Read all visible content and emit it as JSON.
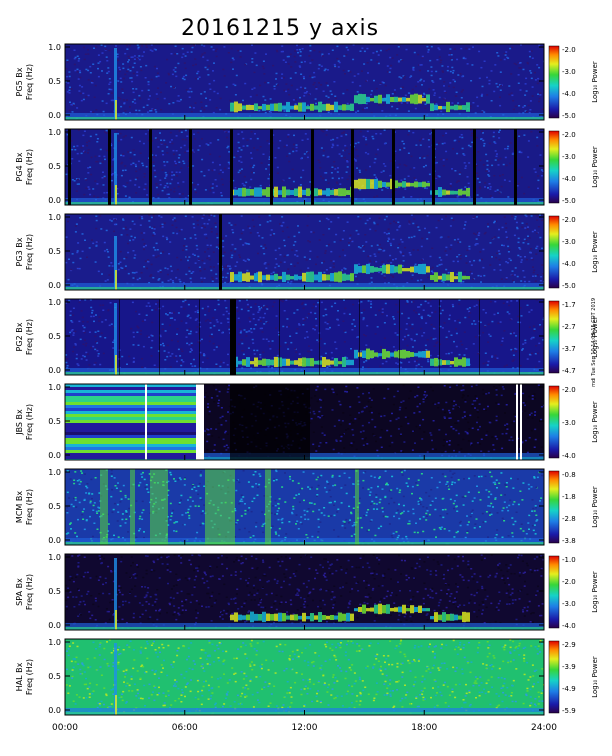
{
  "title": "20161215 y axis",
  "stamp": "mdi Tue Sep 10 14:09:15 CDT 2019",
  "chart_data": {
    "type": "heatmap",
    "x_ticks": [
      "00:00",
      "06:00",
      "12:00",
      "18:00",
      "24:00"
    ],
    "y_ticks": [
      "0.0",
      "0.5",
      "1.0"
    ],
    "colorbar_label": "Log₁₀ Power",
    "panels": [
      {
        "station": "PG5 Bx",
        "ylabel": "Freq (Hz)",
        "cbar_ticks": [
          "-2.0",
          "-3.0",
          "-4.0",
          "-5.0"
        ]
      },
      {
        "station": "PG4 Bx",
        "ylabel": "Freq (Hz)",
        "cbar_ticks": [
          "-2.0",
          "-3.0",
          "-4.0",
          "-5.0"
        ]
      },
      {
        "station": "PG3 Bx",
        "ylabel": "Freq (Hz)",
        "cbar_ticks": [
          "-2.0",
          "-3.0",
          "-4.0",
          "-5.0"
        ]
      },
      {
        "station": "PG2 Bx",
        "ylabel": "Freq (Hz)",
        "cbar_ticks": [
          "-1.7",
          "-2.7",
          "-3.7",
          "-4.7"
        ]
      },
      {
        "station": "JBS Bx",
        "ylabel": "Freq (Hz)",
        "cbar_ticks": [
          "-2.0",
          "-3.0",
          "-4.0"
        ]
      },
      {
        "station": "MCM Bx",
        "ylabel": "Freq (Hz)",
        "cbar_ticks": [
          "-0.8",
          "-1.8",
          "-2.8",
          "-3.8"
        ]
      },
      {
        "station": "SPA Bx",
        "ylabel": "Freq (Hz)",
        "cbar_ticks": [
          "-1.0",
          "-2.0",
          "-3.0",
          "-4.0"
        ]
      },
      {
        "station": "HAL Bx",
        "ylabel": "Freq (Hz)",
        "cbar_ticks": [
          "-2.9",
          "-3.9",
          "-4.9",
          "-5.9"
        ]
      }
    ]
  }
}
